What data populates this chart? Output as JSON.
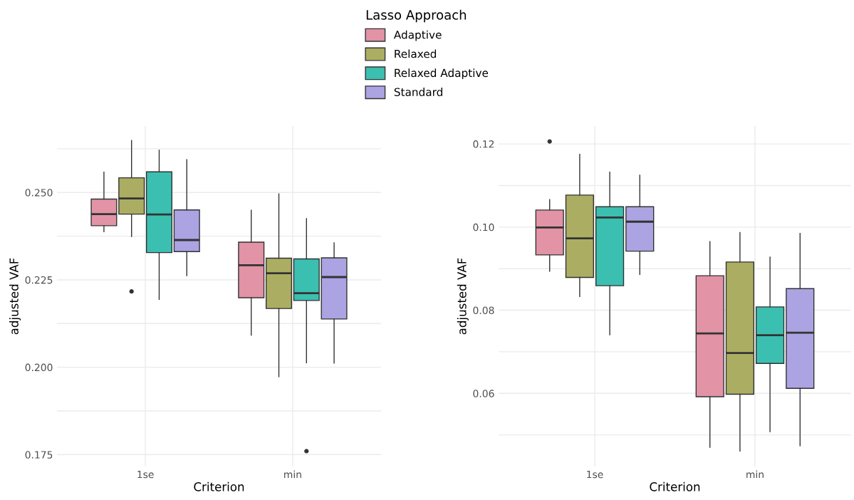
{
  "chart_data": [
    {
      "type": "box",
      "categories": [
        "1se",
        "min"
      ],
      "xlabel": "Criterion",
      "ylabel": "adjusted VAF",
      "legend_title": "Lasso Approach",
      "legend": "top",
      "grid": true,
      "ylim": [
        0.1716,
        0.269
      ],
      "yticks": [
        {
          "value": 0.175,
          "label": "0.175"
        },
        {
          "value": 0.1875,
          "label": null
        },
        {
          "value": 0.2,
          "label": "0.200"
        },
        {
          "value": 0.2125,
          "label": null
        },
        {
          "value": 0.225,
          "label": "0.225"
        },
        {
          "value": 0.2375,
          "label": null
        },
        {
          "value": 0.25,
          "label": "0.250"
        },
        {
          "value": 0.2625,
          "label": null
        }
      ],
      "series": [
        {
          "name": "Adaptive",
          "color": "#e293a6",
          "boxes": [
            {
              "low": 0.2388,
              "q1": 0.2405,
              "median": 0.2438,
              "q3": 0.2481,
              "high": 0.2558
            },
            {
              "low": 0.2092,
              "q1": 0.2199,
              "median": 0.2292,
              "q3": 0.2358,
              "high": 0.2449
            }
          ]
        },
        {
          "name": "Relaxed",
          "color": "#abae62",
          "boxes": [
            {
              "low": 0.2374,
              "q1": 0.2438,
              "median": 0.2483,
              "q3": 0.2542,
              "high": 0.2649,
              "outliers": [
                0.2217
              ]
            },
            {
              "low": 0.1973,
              "q1": 0.2168,
              "median": 0.2269,
              "q3": 0.2312,
              "high": 0.2496
            }
          ]
        },
        {
          "name": "Relaxed Adaptive",
          "color": "#3bbfb0",
          "boxes": [
            {
              "low": 0.2194,
              "q1": 0.2328,
              "median": 0.2437,
              "q3": 0.2559,
              "high": 0.2621
            },
            {
              "low": 0.2013,
              "q1": 0.2191,
              "median": 0.2212,
              "q3": 0.231,
              "high": 0.2425,
              "outliers": [
                0.176
              ]
            }
          ]
        },
        {
          "name": "Standard",
          "color": "#aba3e2",
          "boxes": [
            {
              "low": 0.2262,
              "q1": 0.2331,
              "median": 0.2364,
              "q3": 0.245,
              "high": 0.2594
            },
            {
              "low": 0.2012,
              "q1": 0.2138,
              "median": 0.2258,
              "q3": 0.2313,
              "high": 0.2356
            }
          ]
        }
      ]
    },
    {
      "type": "box",
      "categories": [
        "1se",
        "min"
      ],
      "xlabel": "Criterion",
      "ylabel": "adjusted VAF",
      "grid": true,
      "ylim": [
        0.0424,
        0.1243
      ],
      "yticks": [
        {
          "value": 0.05,
          "label": null
        },
        {
          "value": 0.06,
          "label": "0.06"
        },
        {
          "value": 0.07,
          "label": null
        },
        {
          "value": 0.08,
          "label": "0.08"
        },
        {
          "value": 0.09,
          "label": null
        },
        {
          "value": 0.1,
          "label": "0.10"
        },
        {
          "value": 0.11,
          "label": null
        },
        {
          "value": 0.12,
          "label": "0.12"
        }
      ],
      "series": [
        {
          "name": "Adaptive",
          "color": "#e293a6",
          "boxes": [
            {
              "low": 0.0894,
              "q1": 0.0933,
              "median": 0.0999,
              "q3": 0.1041,
              "high": 0.1066,
              "outliers": [
                0.1206
              ]
            },
            {
              "low": 0.047,
              "q1": 0.0592,
              "median": 0.0744,
              "q3": 0.0883,
              "high": 0.0965
            }
          ]
        },
        {
          "name": "Relaxed",
          "color": "#abae62",
          "boxes": [
            {
              "low": 0.0833,
              "q1": 0.0879,
              "median": 0.0973,
              "q3": 0.1077,
              "high": 0.1175
            },
            {
              "low": 0.0461,
              "q1": 0.0598,
              "median": 0.0697,
              "q3": 0.0916,
              "high": 0.0987
            }
          ]
        },
        {
          "name": "Relaxed Adaptive",
          "color": "#3bbfb0",
          "boxes": [
            {
              "low": 0.0741,
              "q1": 0.0859,
              "median": 0.1023,
              "q3": 0.1049,
              "high": 0.1132
            },
            {
              "low": 0.0508,
              "q1": 0.0672,
              "median": 0.074,
              "q3": 0.0808,
              "high": 0.0928
            }
          ]
        },
        {
          "name": "Standard",
          "color": "#aba3e2",
          "boxes": [
            {
              "low": 0.0886,
              "q1": 0.0942,
              "median": 0.1013,
              "q3": 0.1049,
              "high": 0.1125
            },
            {
              "low": 0.0474,
              "q1": 0.0612,
              "median": 0.0746,
              "q3": 0.0852,
              "high": 0.0985
            }
          ]
        }
      ]
    }
  ]
}
